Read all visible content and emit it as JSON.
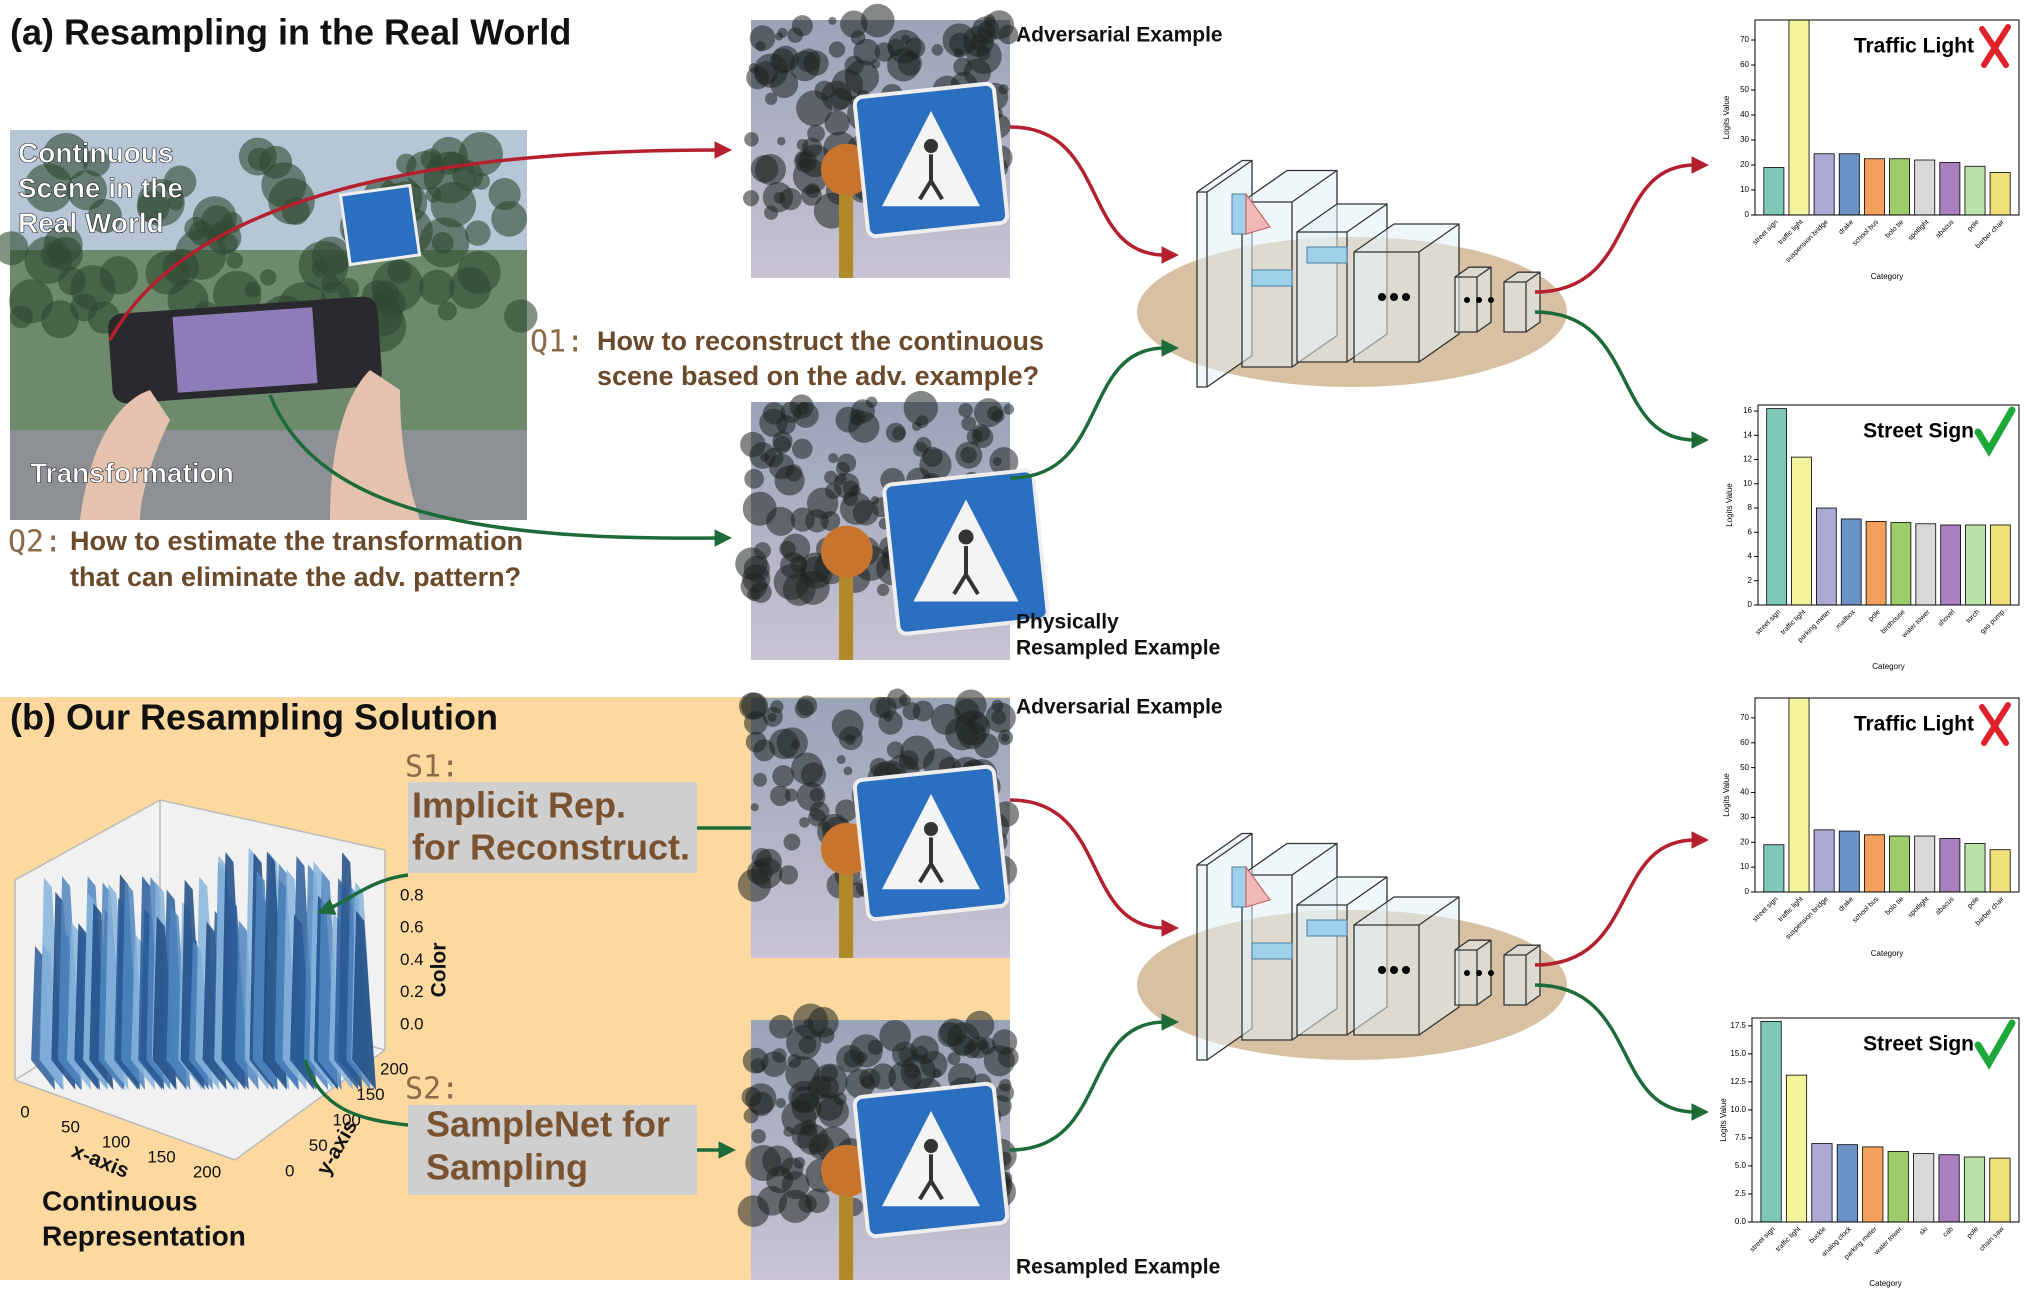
{
  "panel_a": {
    "title": "(a) Resampling in the Real World",
    "scene_label": [
      "Continuous",
      "Scene in the",
      "Real World"
    ],
    "transformation_label": "Transformation",
    "q1": {
      "tag": "Q1:",
      "lines": [
        "How to reconstruct the continuous",
        "scene based on the adv. example?"
      ]
    },
    "q2": {
      "tag": "Q2:",
      "lines": [
        "How to estimate the transformation",
        "that can eliminate the adv. pattern?"
      ]
    },
    "adversarial_label": "Adversarial Example",
    "resampled_label": [
      "Physically",
      "Resampled Example"
    ],
    "charts": [
      {
        "type": "bar",
        "title": "Traffic Light",
        "verdict": "cross",
        "ylabel": "Logits Value",
        "xlabel": "Category",
        "categories": [
          "street sign",
          "traffic light",
          "suspension bridge",
          "drake",
          "school bus",
          "bolo tie",
          "spotlight",
          "abacus",
          "pole",
          "barber chair"
        ],
        "values": [
          19,
          78,
          24.5,
          24.5,
          22.5,
          22.5,
          22,
          21,
          19.5,
          17
        ],
        "colors": [
          "#7fc8b8",
          "#f3f39c",
          "#aaaad4",
          "#6c93c6",
          "#f3a05c",
          "#9ccd6a",
          "#d9d9d9",
          "#a97fc0",
          "#b8e2a8",
          "#f0e07a"
        ],
        "ylim": [
          0,
          78
        ],
        "yticks": [
          0,
          10,
          20,
          30,
          40,
          50,
          60,
          70
        ]
      },
      {
        "type": "bar",
        "title": "Street Sign",
        "verdict": "check",
        "ylabel": "Logits Value",
        "xlabel": "Category",
        "categories": [
          "street sign",
          "traffic light",
          "parking meter",
          "mailbox",
          "pole",
          "birdhouse",
          "water tower",
          "shovel",
          "torch",
          "gas pump"
        ],
        "values": [
          16.2,
          12.2,
          8,
          7.1,
          6.9,
          6.8,
          6.7,
          6.6,
          6.6,
          6.6
        ],
        "colors": [
          "#7fc8b8",
          "#f3f39c",
          "#aaaad4",
          "#6c93c6",
          "#f3a05c",
          "#9ccd6a",
          "#d9d9d9",
          "#a97fc0",
          "#b8e2a8",
          "#f0e07a"
        ],
        "ylim": [
          0,
          16.5
        ],
        "yticks": [
          0,
          2,
          4,
          6,
          8,
          10,
          12,
          14,
          16
        ]
      }
    ]
  },
  "panel_b": {
    "title": "(b) Our Resampling Solution",
    "s1": {
      "tag": "S1:",
      "lines": [
        "Implicit Rep.",
        "for Reconstruct."
      ]
    },
    "s2": {
      "tag": "S2:",
      "lines": [
        "SampleNet for",
        "Sampling"
      ]
    },
    "representation_label": [
      "Continuous",
      "Representation"
    ],
    "plot3d": {
      "xlabel": "x-axis",
      "ylabel": "y-axis",
      "zlabel": "Color",
      "xticks": [
        0,
        50,
        100,
        150,
        200
      ],
      "yticks": [
        0,
        50,
        100,
        150,
        200
      ],
      "zticks": [
        {
          "value": 0,
          "label": "0.0"
        },
        0.2,
        0.4,
        0.6,
        0.8
      ]
    },
    "adversarial_label": "Adversarial Example",
    "resampled_label": "Resampled Example",
    "charts": [
      {
        "type": "bar",
        "title": "Traffic Light",
        "verdict": "cross",
        "ylabel": "Logits Value",
        "xlabel": "Category",
        "categories": [
          "street sign",
          "traffic light",
          "suspension bridge",
          "drake",
          "school bus",
          "bolo tie",
          "spotlight",
          "abacus",
          "pole",
          "barber chair"
        ],
        "values": [
          19,
          78,
          25,
          24.5,
          23,
          22.5,
          22.5,
          21.5,
          19.5,
          17
        ],
        "colors": [
          "#7fc8b8",
          "#f3f39c",
          "#aaaad4",
          "#6c93c6",
          "#f3a05c",
          "#9ccd6a",
          "#d9d9d9",
          "#a97fc0",
          "#b8e2a8",
          "#f0e07a"
        ],
        "ylim": [
          0,
          78
        ],
        "yticks": [
          0,
          10,
          20,
          30,
          40,
          50,
          60,
          70
        ]
      },
      {
        "type": "bar",
        "title": "Street Sign",
        "verdict": "check",
        "ylabel": "Logits Value",
        "xlabel": "Category",
        "categories": [
          "street sign",
          "traffic light",
          "buckle",
          "analog clock",
          "parking meter",
          "water tower",
          "ski",
          "cab",
          "pole",
          "chain saw"
        ],
        "values": [
          17.9,
          13.1,
          7.0,
          6.9,
          6.7,
          6.3,
          6.1,
          6.0,
          5.8,
          5.7
        ],
        "colors": [
          "#7fc8b8",
          "#f3f39c",
          "#aaaad4",
          "#6c93c6",
          "#f3a05c",
          "#9ccd6a",
          "#d9d9d9",
          "#a97fc0",
          "#b8e2a8",
          "#f0e07a"
        ],
        "ylim": [
          0,
          18.2
        ],
        "yticks": [
          {
            "value": 0,
            "label": "0.0"
          },
          2.5,
          {
            "value": 5,
            "label": "5.0"
          },
          7.5,
          {
            "value": 10,
            "label": "10.0"
          },
          12.5,
          {
            "value": 15,
            "label": "15.0"
          },
          17.5
        ]
      }
    ]
  }
}
